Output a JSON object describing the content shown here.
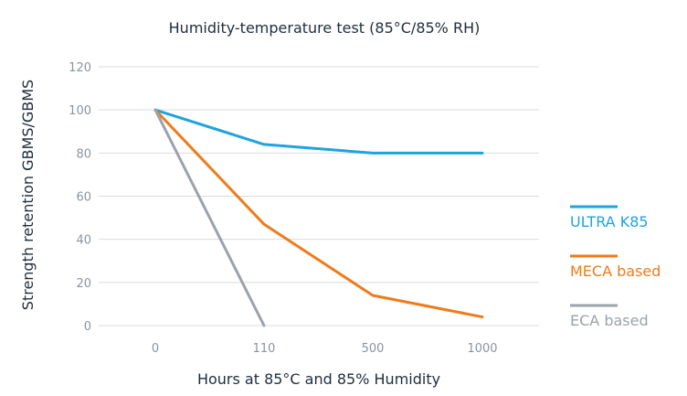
{
  "chart_data": {
    "type": "line",
    "title": "Humidity-temperature test  (85°C/85% RH)",
    "xlabel": "Hours at 85°C and 85% Humidity",
    "ylabel": "Strength retention GBMS/GBMS",
    "categories": [
      "0",
      "110",
      "500",
      "1000"
    ],
    "ylim": [
      0,
      120
    ],
    "yticks": [
      0,
      20,
      40,
      60,
      80,
      100,
      120
    ],
    "grid": true,
    "legend_position": "right",
    "series": [
      {
        "name": "ULTRA K85",
        "color": "#1ea4de",
        "values": [
          100,
          84,
          80,
          80
        ]
      },
      {
        "name": "MECA based",
        "color": "#ee7b1c",
        "values": [
          100,
          47,
          14,
          4
        ]
      },
      {
        "name": "ECA based",
        "color": "#9aa3ab",
        "values": [
          100,
          0,
          null,
          null
        ]
      }
    ]
  }
}
